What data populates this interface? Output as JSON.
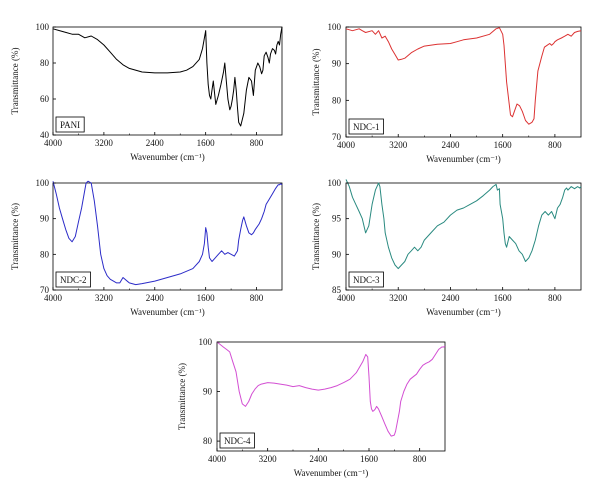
{
  "figure": {
    "xlabel": "Wavenumber (cm⁻¹)",
    "ylabel": "Transmittance (%)"
  },
  "chart_data": [
    {
      "type": "line",
      "panel_label": "PANI",
      "xlabel": "Wavenumber (cm⁻¹)",
      "ylabel": "Transmittance (%)",
      "xlim": [
        4000,
        400
      ],
      "ylim": [
        40,
        100
      ],
      "x_ticks": [
        4000,
        3200,
        2400,
        1600,
        800
      ],
      "y_ticks": [
        40,
        60,
        80,
        100
      ],
      "series": [
        {
          "color": "#000000",
          "x": [
            4000,
            3900,
            3800,
            3700,
            3600,
            3500,
            3400,
            3300,
            3200,
            3100,
            3000,
            2900,
            2800,
            2600,
            2400,
            2200,
            2000,
            1900,
            1800,
            1700,
            1650,
            1600,
            1580,
            1560,
            1540,
            1520,
            1500,
            1480,
            1460,
            1440,
            1400,
            1360,
            1320,
            1300,
            1280,
            1250,
            1220,
            1200,
            1180,
            1160,
            1140,
            1120,
            1100,
            1080,
            1050,
            1000,
            960,
            920,
            880,
            850,
            820,
            800,
            780,
            750,
            720,
            700,
            680,
            650,
            620,
            600,
            580,
            550,
            520,
            500,
            480,
            460,
            440,
            420,
            400
          ],
          "y": [
            99,
            98,
            97,
            96,
            96,
            94,
            95,
            93,
            90,
            86,
            82,
            79,
            77,
            75,
            74.5,
            74.5,
            75,
            76,
            78,
            82,
            88,
            98,
            80,
            68,
            62,
            60,
            65,
            70,
            63,
            57,
            62,
            68,
            75,
            80,
            72,
            60,
            54,
            56,
            60,
            65,
            72,
            65,
            55,
            47,
            45,
            52,
            65,
            72,
            70,
            62,
            76,
            78,
            80,
            78,
            74,
            76,
            84,
            86,
            83,
            80,
            85,
            88,
            87,
            85,
            90,
            92,
            90,
            96,
            100
          ]
        }
      ]
    },
    {
      "type": "line",
      "panel_label": "NDC-1",
      "xlabel": "Wavenumber (cm⁻¹)",
      "ylabel": "Transmittance (%)",
      "xlim": [
        4000,
        400
      ],
      "ylim": [
        70,
        100
      ],
      "x_ticks": [
        4000,
        3200,
        2400,
        1600,
        800
      ],
      "y_ticks": [
        70,
        80,
        90,
        100
      ],
      "series": [
        {
          "color": "#dc3232",
          "x": [
            4000,
            3900,
            3800,
            3750,
            3700,
            3600,
            3550,
            3500,
            3450,
            3400,
            3350,
            3300,
            3250,
            3200,
            3150,
            3100,
            3000,
            2900,
            2800,
            2600,
            2400,
            2300,
            2200,
            2000,
            1800,
            1700,
            1650,
            1600,
            1580,
            1560,
            1540,
            1500,
            1480,
            1450,
            1420,
            1380,
            1340,
            1300,
            1280,
            1250,
            1200,
            1150,
            1120,
            1100,
            1080,
            1060,
            1000,
            960,
            920,
            880,
            850,
            820,
            800,
            760,
            700,
            650,
            600,
            550,
            500,
            450,
            400
          ],
          "y": [
            99.5,
            99,
            99.5,
            99,
            98.5,
            99,
            98,
            99,
            97,
            97.5,
            96,
            94,
            92.5,
            91,
            91.2,
            91.5,
            93,
            94,
            94.8,
            95.3,
            95.5,
            96,
            96.5,
            97,
            98,
            99.5,
            99.8,
            98,
            95,
            90,
            85,
            79,
            76,
            75.5,
            77,
            79,
            78.5,
            77,
            76,
            74.5,
            73.5,
            74,
            75,
            80,
            84,
            88,
            92,
            94.5,
            95,
            95.5,
            95,
            95.5,
            96,
            96.5,
            97,
            97.5,
            98,
            97.5,
            98.5,
            98.8,
            99
          ]
        }
      ]
    },
    {
      "type": "line",
      "panel_label": "NDC-2",
      "xlabel": "Wavenumber (cm⁻¹)",
      "ylabel": "Transmittance (%)",
      "xlim": [
        4000,
        400
      ],
      "ylim": [
        70,
        100
      ],
      "x_ticks": [
        4000,
        3200,
        2400,
        1600,
        800
      ],
      "y_ticks": [
        70,
        80,
        90,
        100
      ],
      "series": [
        {
          "color": "#2c2cc8",
          "x": [
            4000,
            3950,
            3900,
            3850,
            3800,
            3750,
            3700,
            3650,
            3600,
            3550,
            3500,
            3480,
            3450,
            3400,
            3350,
            3300,
            3250,
            3200,
            3150,
            3100,
            3050,
            3000,
            2950,
            2900,
            2800,
            2700,
            2600,
            2400,
            2200,
            2000,
            1800,
            1700,
            1650,
            1620,
            1600,
            1580,
            1560,
            1540,
            1500,
            1450,
            1400,
            1350,
            1300,
            1250,
            1200,
            1150,
            1100,
            1080,
            1050,
            1020,
            1000,
            960,
            920,
            880,
            850,
            820,
            800,
            760,
            720,
            700,
            680,
            650,
            600,
            550,
            500,
            480,
            460,
            440,
            420,
            400
          ],
          "y": [
            100.5,
            97,
            93,
            90,
            87,
            84.5,
            83.5,
            85,
            89,
            93,
            98,
            100,
            100.5,
            100,
            95,
            88,
            80,
            76,
            74,
            73,
            72.5,
            72,
            72,
            73.5,
            72,
            71.5,
            71.8,
            72.5,
            73.5,
            74.5,
            76,
            78,
            80,
            83,
            87.5,
            86,
            82,
            79,
            78,
            79,
            80,
            81,
            80,
            80.5,
            80,
            79.5,
            81,
            84,
            87,
            89.5,
            90.5,
            88,
            86,
            85.5,
            86,
            87,
            87.5,
            88.5,
            90,
            91,
            92,
            94,
            95.5,
            97,
            98.5,
            99,
            99.5,
            99.5,
            99.8,
            99.5
          ]
        }
      ]
    },
    {
      "type": "line",
      "panel_label": "NDC-3",
      "xlabel": "Wavenumber (cm⁻¹)",
      "ylabel": "Transmittance (%)",
      "xlim": [
        4000,
        400
      ],
      "ylim": [
        85,
        100
      ],
      "x_ticks": [
        4000,
        3200,
        2400,
        1600,
        800
      ],
      "y_ticks": [
        85,
        90,
        95,
        100
      ],
      "series": [
        {
          "color": "#2a8a80",
          "x": [
            4000,
            3950,
            3900,
            3850,
            3800,
            3750,
            3700,
            3650,
            3600,
            3550,
            3500,
            3480,
            3450,
            3420,
            3400,
            3350,
            3300,
            3250,
            3200,
            3150,
            3100,
            3050,
            3000,
            2950,
            2900,
            2850,
            2800,
            2700,
            2600,
            2500,
            2400,
            2300,
            2200,
            2100,
            2000,
            1900,
            1800,
            1750,
            1700,
            1680,
            1650,
            1640,
            1620,
            1600,
            1580,
            1560,
            1540,
            1500,
            1450,
            1400,
            1350,
            1300,
            1250,
            1200,
            1150,
            1100,
            1050,
            1000,
            950,
            900,
            850,
            800,
            760,
            720,
            680,
            650,
            620,
            600,
            550,
            500,
            450,
            420,
            400
          ],
          "y": [
            100.5,
            99.5,
            98,
            97,
            96,
            95,
            93,
            94,
            97,
            99,
            100,
            99.5,
            97,
            95,
            93,
            91,
            89.5,
            88.5,
            88,
            88.5,
            89,
            90,
            90.5,
            91,
            90.5,
            91,
            92,
            93,
            94,
            94.5,
            95.5,
            96.2,
            96.5,
            97,
            97.5,
            98.2,
            99,
            99.5,
            99.8,
            99,
            99.2,
            97,
            96,
            95,
            93,
            91.5,
            91,
            92.5,
            92,
            91.5,
            90.5,
            90,
            89,
            89.5,
            90.5,
            92,
            94,
            95.5,
            96,
            95.5,
            96,
            95,
            96.5,
            97,
            98,
            99,
            99.3,
            99,
            99.5,
            99.2,
            99.5,
            99.3,
            99.5
          ]
        }
      ]
    },
    {
      "type": "line",
      "panel_label": "NDC-4",
      "xlabel": "Wavenumber (cm⁻¹)",
      "ylabel": "Transmittance (%)",
      "xlim": [
        4000,
        400
      ],
      "ylim": [
        78,
        100
      ],
      "x_ticks": [
        4000,
        3200,
        2400,
        1600,
        800
      ],
      "y_ticks": [
        80,
        90,
        100
      ],
      "series": [
        {
          "color": "#d34fd3",
          "x": [
            4000,
            3950,
            3900,
            3850,
            3800,
            3750,
            3700,
            3650,
            3600,
            3550,
            3500,
            3450,
            3400,
            3350,
            3300,
            3200,
            3100,
            3000,
            2900,
            2800,
            2700,
            2600,
            2500,
            2400,
            2300,
            2200,
            2100,
            2000,
            1900,
            1800,
            1700,
            1650,
            1620,
            1600,
            1580,
            1560,
            1540,
            1520,
            1500,
            1480,
            1450,
            1400,
            1350,
            1300,
            1250,
            1200,
            1180,
            1150,
            1120,
            1100,
            1050,
            1000,
            950,
            900,
            850,
            800,
            750,
            700,
            650,
            600,
            550,
            500,
            450,
            420,
            400
          ],
          "y": [
            100,
            99.5,
            99,
            98.5,
            98,
            96,
            94,
            90,
            87.5,
            87,
            88,
            89.5,
            90.5,
            91.2,
            91.5,
            91.8,
            91.7,
            91.5,
            91.3,
            91,
            91.2,
            90.8,
            90.5,
            90.3,
            90.5,
            90.8,
            91.2,
            91.8,
            92.5,
            93.8,
            96,
            97.5,
            97,
            93,
            88,
            86.5,
            86,
            86.2,
            86.5,
            87,
            86.5,
            85,
            83.5,
            82,
            81,
            81.2,
            82,
            84,
            86,
            88,
            90,
            91.5,
            92.5,
            93,
            93.5,
            94.5,
            95.3,
            95.7,
            96,
            96.5,
            97.5,
            98.5,
            99,
            99,
            99.2
          ]
        }
      ]
    }
  ]
}
